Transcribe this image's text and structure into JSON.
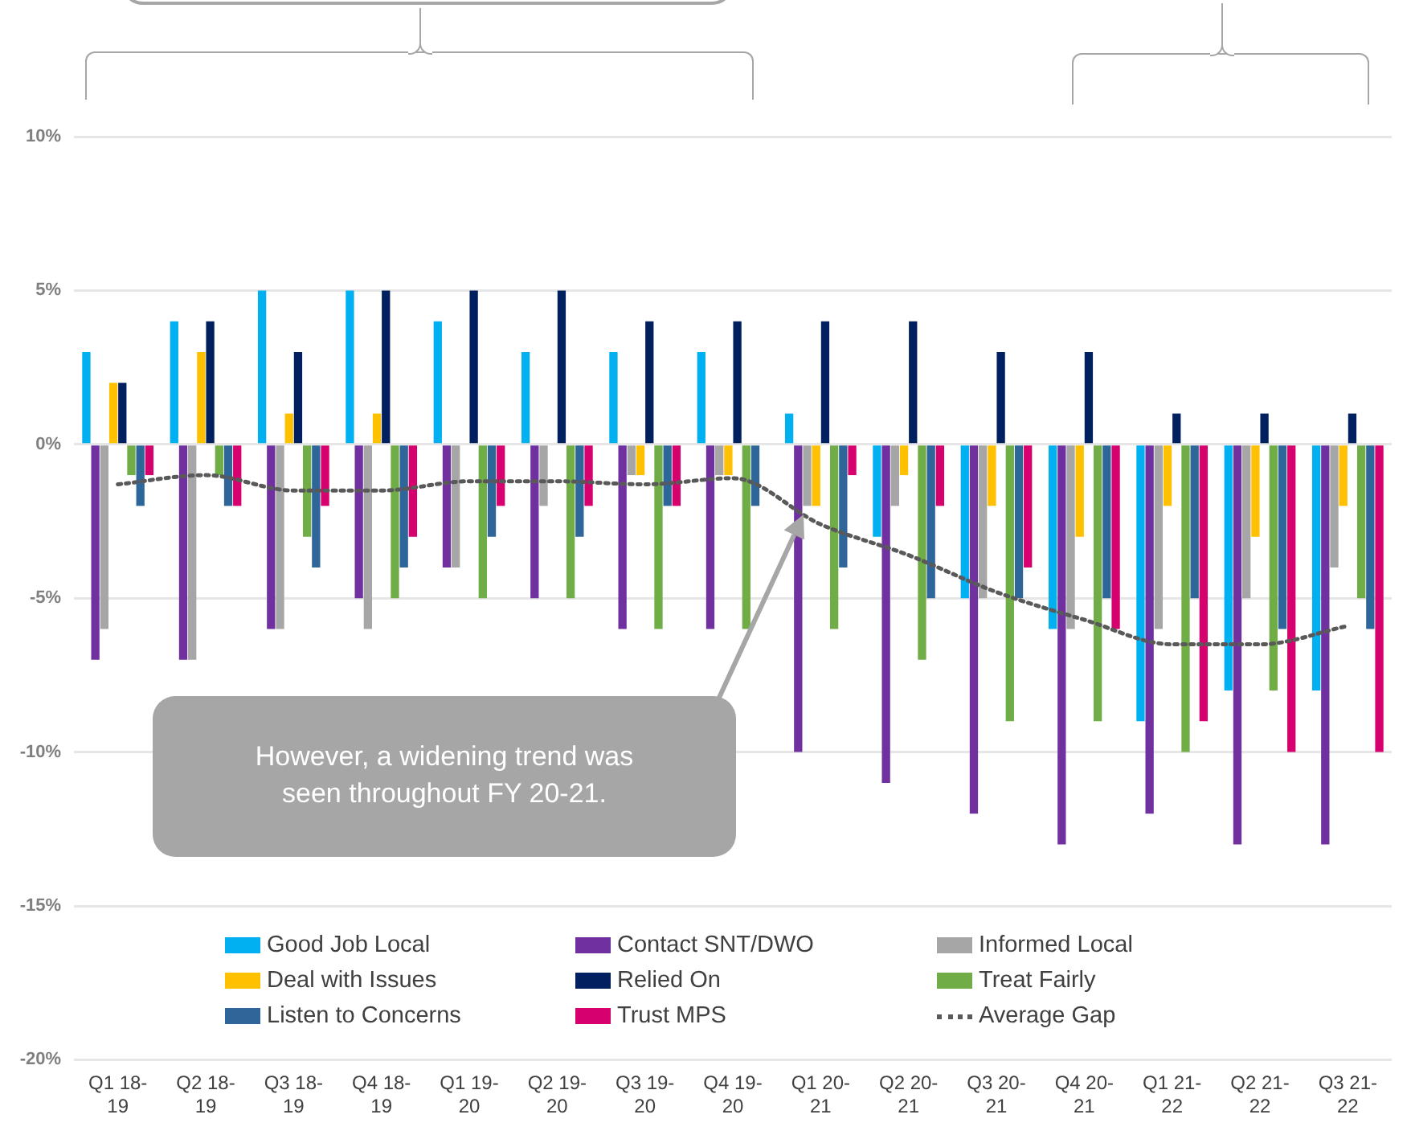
{
  "chart_data": {
    "type": "bar",
    "categories": [
      "Q1 18-19",
      "Q2 18-19",
      "Q3 18-19",
      "Q4 18-19",
      "Q1 19-20",
      "Q2 19-20",
      "Q3 19-20",
      "Q4 19-20",
      "Q1 20-21",
      "Q2 20-21",
      "Q3 20-21",
      "Q4 20-21",
      "Q1 21-22",
      "Q2 21-22",
      "Q3 21-22"
    ],
    "series": [
      {
        "name": "Good Job Local",
        "color": "#00b0f0",
        "values": [
          3,
          4,
          5,
          5,
          4,
          3,
          3,
          3,
          1,
          -3,
          -5,
          -6,
          -9,
          -8,
          -8
        ]
      },
      {
        "name": "Contact SNT/DWO",
        "color": "#7030a0",
        "values": [
          -7,
          -7,
          -6,
          -5,
          -4,
          -5,
          -6,
          -6,
          -10,
          -11,
          -12,
          -13,
          -12,
          -13,
          -13
        ]
      },
      {
        "name": "Informed Local",
        "color": "#a6a6a6",
        "values": [
          -6,
          -7,
          -6,
          -6,
          -4,
          -2,
          -1,
          -1,
          -2,
          -2,
          -5,
          -6,
          -6,
          -5,
          -4
        ]
      },
      {
        "name": "Deal with Issues",
        "color": "#ffc000",
        "values": [
          2,
          3,
          1,
          1,
          0,
          0,
          -1,
          -1,
          -2,
          -1,
          -2,
          -3,
          -2,
          -3,
          -2
        ]
      },
      {
        "name": "Relied On",
        "color": "#002060",
        "values": [
          2,
          4,
          3,
          5,
          5,
          5,
          4,
          4,
          4,
          4,
          3,
          3,
          1,
          1,
          1
        ]
      },
      {
        "name": "Treat Fairly",
        "color": "#70ad47",
        "values": [
          -1,
          -1,
          -3,
          -5,
          -5,
          -5,
          -6,
          -6,
          -6,
          -7,
          -9,
          -9,
          -10,
          -8,
          -5
        ]
      },
      {
        "name": "Listen to Concerns",
        "color": "#2e6699",
        "values": [
          -2,
          -2,
          -4,
          -4,
          -3,
          -3,
          -2,
          -2,
          -4,
          -5,
          -5,
          -5,
          -5,
          -6,
          -6
        ]
      },
      {
        "name": "Trust MPS",
        "color": "#d6006f",
        "values": [
          -1,
          -2,
          -2,
          -3,
          -2,
          -2,
          -2,
          0,
          -1,
          -2,
          -4,
          -6,
          -9,
          -10,
          -10
        ]
      },
      {
        "name": "Average Gap",
        "type": "line",
        "color": "#595959",
        "line_style": "dotted",
        "marker": "none",
        "values": [
          -1.3,
          -1.0,
          -1.5,
          -1.5,
          -1.2,
          -1.2,
          -1.3,
          -1.1,
          -2.6,
          -3.6,
          -4.8,
          -5.7,
          -6.5,
          -6.5,
          -5.9
        ]
      }
    ],
    "ylim": [
      -20,
      10
    ],
    "yticks": [
      {
        "value": -20,
        "label": "-20%"
      },
      {
        "value": -15,
        "label": "-15%"
      },
      {
        "value": -10,
        "label": "-10%"
      },
      {
        "value": -5,
        "label": "-5%"
      },
      {
        "value": 0,
        "label": "0%"
      },
      {
        "value": 5,
        "label": "5%"
      },
      {
        "value": 10,
        "label": "10%"
      }
    ],
    "grid": "y",
    "legend": "bottom",
    "annotations": [
      "However, a widening trend was seen throughout FY 20-21."
    ]
  }
}
